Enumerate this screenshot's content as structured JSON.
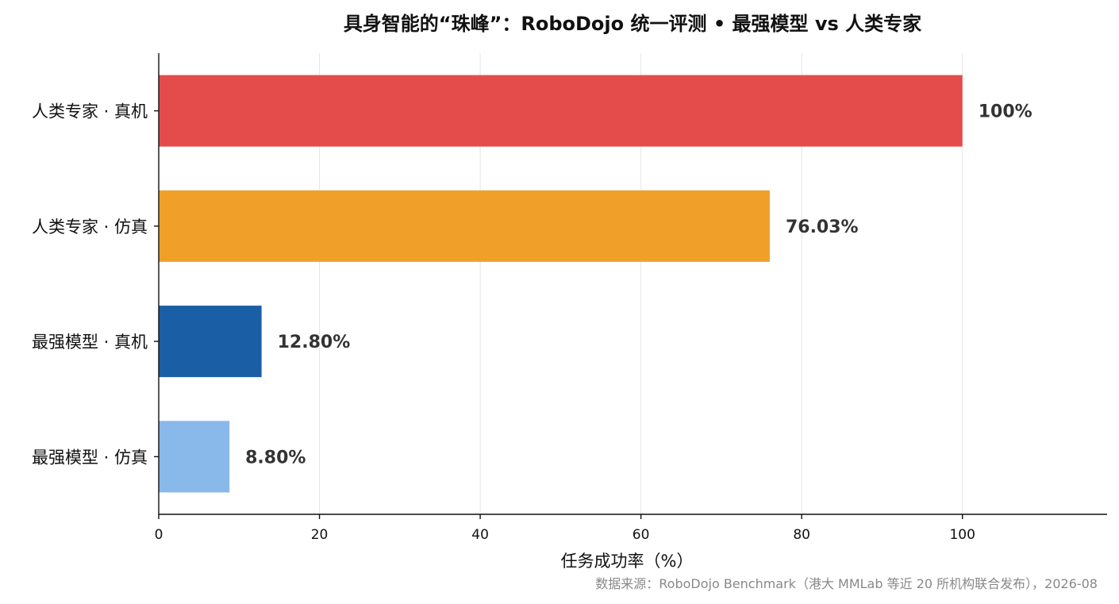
{
  "chart_data": {
    "type": "bar",
    "orientation": "horizontal",
    "title": "具身智能的“珠峰”：RoboDojo 统一评测 • 最强模型 vs 人类专家",
    "xlabel": "任务成功率（%）",
    "ylabel": "",
    "xlim": [
      0,
      118
    ],
    "xticks": [
      0,
      20,
      40,
      60,
      80,
      100
    ],
    "grid": "vertical",
    "categories": [
      "人类专家 · 真机",
      "人类专家 · 仿真",
      "最强模型 · 真机",
      "最强模型 · 仿真"
    ],
    "values": [
      100,
      76.03,
      12.8,
      8.8
    ],
    "value_labels": [
      "100%",
      "76.03%",
      "12.80%",
      "8.80%"
    ],
    "colors": [
      "#e44c4c",
      "#f0a029",
      "#1a5ea6",
      "#89b8ea"
    ],
    "source": "数据来源：RoboDojo Benchmark（港大 MMLab 等近 20 所机构联合发布），2026-08"
  }
}
